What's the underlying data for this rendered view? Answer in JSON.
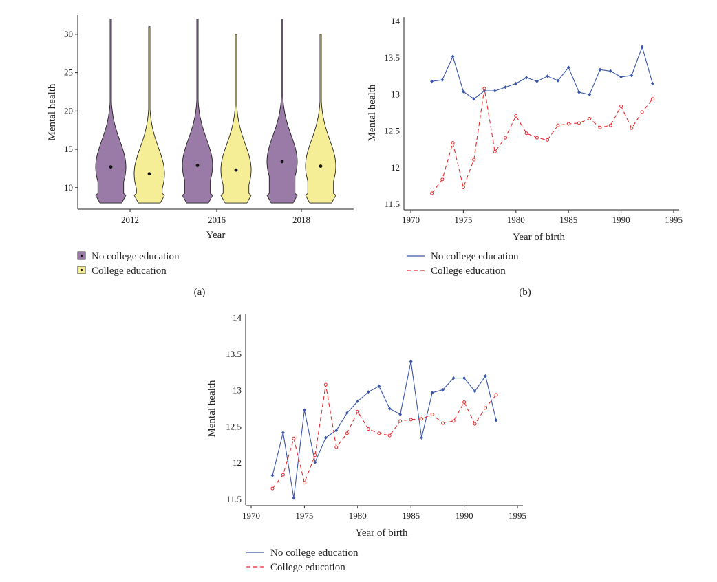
{
  "chart_data": [
    {
      "type": "violin",
      "panel_label": "(a)",
      "xlabel": "Year",
      "ylabel": "Mental health",
      "categories": [
        "2012",
        "2016",
        "2018"
      ],
      "yticks": [
        10,
        15,
        20,
        25,
        30
      ],
      "ylim": [
        7.2,
        32.5
      ],
      "series": [
        {
          "name": "No college education",
          "color": "#9a7aa6",
          "medians": [
            12.7,
            12.9,
            13.4
          ],
          "min": [
            8,
            8,
            8
          ],
          "max": [
            32,
            32,
            32
          ]
        },
        {
          "name": "College education",
          "color": "#f6ee96",
          "medians": [
            11.8,
            12.3,
            12.8
          ],
          "min": [
            8,
            8,
            8
          ],
          "max": [
            31,
            30,
            30
          ]
        }
      ],
      "legend": [
        {
          "label": "No college education",
          "color": "#9a7aa6"
        },
        {
          "label": "College education",
          "color": "#f6ee96"
        }
      ]
    },
    {
      "type": "line",
      "panel_label": "(b)",
      "xlabel": "Year of birth",
      "ylabel": "Mental health",
      "xticks": [
        1970,
        1975,
        1980,
        1985,
        1990,
        1995
      ],
      "yticks": [
        11.5,
        12,
        12.5,
        13,
        13.5,
        14
      ],
      "xlim": [
        1970,
        1995
      ],
      "ylim": [
        11.5,
        14
      ],
      "x": [
        1972,
        1973,
        1974,
        1975,
        1976,
        1977,
        1978,
        1979,
        1980,
        1981,
        1982,
        1983,
        1984,
        1985,
        1986,
        1987,
        1988,
        1989,
        1990,
        1991,
        1992,
        1993
      ],
      "series": [
        {
          "name": "No college education",
          "color": "#3a56a8",
          "style": "solid",
          "values": [
            13.18,
            13.2,
            13.52,
            13.04,
            12.94,
            13.05,
            13.05,
            13.1,
            13.15,
            13.23,
            13.18,
            13.25,
            13.19,
            13.37,
            13.03,
            13.0,
            13.34,
            13.32,
            13.24,
            13.26,
            13.65,
            13.15
          ]
        },
        {
          "name": "College education",
          "color": "#e8282b",
          "style": "dashed",
          "values": [
            11.65,
            11.84,
            12.34,
            11.73,
            12.11,
            13.08,
            12.22,
            12.41,
            12.71,
            12.47,
            12.41,
            12.38,
            12.58,
            12.6,
            12.61,
            12.67,
            12.55,
            12.58,
            12.84,
            12.54,
            12.76,
            12.94
          ]
        }
      ],
      "legend": [
        {
          "label": "No college education",
          "color": "#3a56a8",
          "style": "solid"
        },
        {
          "label": "College education",
          "color": "#e8282b",
          "style": "dashed"
        }
      ]
    },
    {
      "type": "line",
      "xlabel": "Year of birth",
      "ylabel": "Mental health",
      "xticks": [
        1970,
        1975,
        1980,
        1985,
        1990,
        1995
      ],
      "yticks": [
        11.5,
        12,
        12.5,
        13,
        13.5,
        14
      ],
      "xlim": [
        1970,
        1995
      ],
      "ylim": [
        11.5,
        14
      ],
      "x": [
        1972,
        1973,
        1974,
        1975,
        1976,
        1977,
        1978,
        1979,
        1980,
        1981,
        1982,
        1983,
        1984,
        1985,
        1986,
        1987,
        1988,
        1989,
        1990,
        1991,
        1992,
        1993
      ],
      "series": [
        {
          "name": "No college education",
          "color": "#3a56a8",
          "style": "solid",
          "values": [
            11.83,
            12.42,
            11.52,
            12.73,
            12.01,
            12.35,
            12.45,
            12.69,
            12.85,
            12.98,
            13.06,
            12.75,
            12.67,
            13.4,
            12.35,
            12.97,
            13.01,
            13.17,
            13.17,
            12.99,
            13.2,
            12.59
          ]
        },
        {
          "name": "College education",
          "color": "#e8282b",
          "style": "dashed",
          "values": [
            11.65,
            11.84,
            12.34,
            11.73,
            12.11,
            13.08,
            12.22,
            12.41,
            12.71,
            12.47,
            12.41,
            12.38,
            12.58,
            12.6,
            12.61,
            12.67,
            12.55,
            12.58,
            12.84,
            12.54,
            12.76,
            12.94
          ]
        }
      ],
      "legend": [
        {
          "label": "No college education",
          "color": "#3a56a8",
          "style": "solid"
        },
        {
          "label": "College education",
          "color": "#e8282b",
          "style": "dashed"
        }
      ]
    }
  ]
}
